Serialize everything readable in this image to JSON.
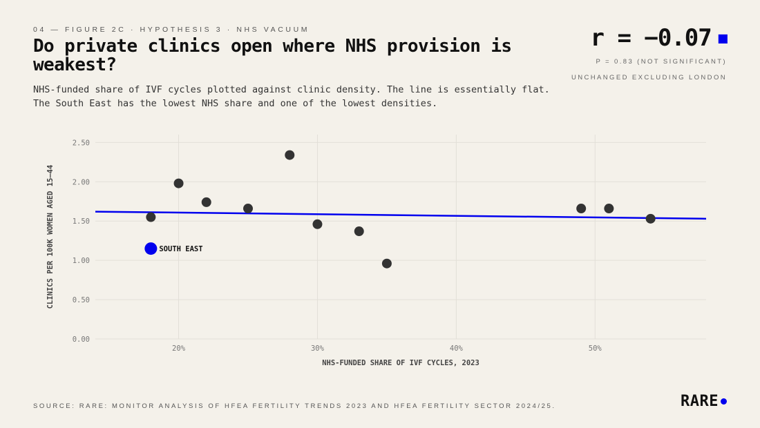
{
  "header": {
    "eyebrow": "04 — FIGURE 2C · HYPOTHESIS 3 · NHS VACUUM",
    "title": "Do private clinics open where NHS provision is weakest?",
    "subtitle": "NHS-funded share of IVF cycles plotted against clinic density. The line is essentially flat. The South East has the lowest NHS share and one of the lowest densities."
  },
  "stat": {
    "value": "r = −0.07",
    "line1": "P = 0.83 (NOT SIGNIFICANT)",
    "line2": "UNCHANGED EXCLUDING LONDON"
  },
  "footer": {
    "source": "SOURCE: RARE: MONITOR ANALYSIS OF HFEA FERTILITY TRENDS 2023 AND HFEA FERTILITY SECTOR 2024/25.",
    "logo": "RARE"
  },
  "colors": {
    "accent": "#0000ee",
    "point": "#333333",
    "grid": "#e2dfd8",
    "background": "#f4f1ea"
  },
  "chart_data": {
    "type": "scatter",
    "xlabel": "NHS-FUNDED SHARE OF IVF CYCLES, 2023",
    "ylabel": "CLINICS PER 100K WOMEN AGED 15–44",
    "xlim": [
      14,
      58
    ],
    "ylim": [
      0,
      2.6
    ],
    "x_ticks": [
      20,
      30,
      40,
      50
    ],
    "x_tick_labels": [
      "20%",
      "30%",
      "40%",
      "50%"
    ],
    "y_ticks": [
      0,
      0.5,
      1.0,
      1.5,
      2.0,
      2.5
    ],
    "y_tick_labels": [
      "0.00",
      "0.50",
      "1.00",
      "1.50",
      "2.00",
      "2.50"
    ],
    "grid": true,
    "points": [
      {
        "x": 18,
        "y": 1.55
      },
      {
        "x": 20,
        "y": 1.98
      },
      {
        "x": 22,
        "y": 1.74
      },
      {
        "x": 25,
        "y": 1.66
      },
      {
        "x": 28,
        "y": 2.34
      },
      {
        "x": 30,
        "y": 1.46
      },
      {
        "x": 33,
        "y": 1.37
      },
      {
        "x": 35,
        "y": 0.96
      },
      {
        "x": 49,
        "y": 1.66
      },
      {
        "x": 51,
        "y": 1.66
      },
      {
        "x": 54,
        "y": 1.53
      }
    ],
    "highlight": {
      "x": 18,
      "y": 1.15,
      "label": "SOUTH EAST"
    },
    "trendline": {
      "x": [
        14,
        58
      ],
      "y": [
        1.62,
        1.53
      ]
    }
  }
}
